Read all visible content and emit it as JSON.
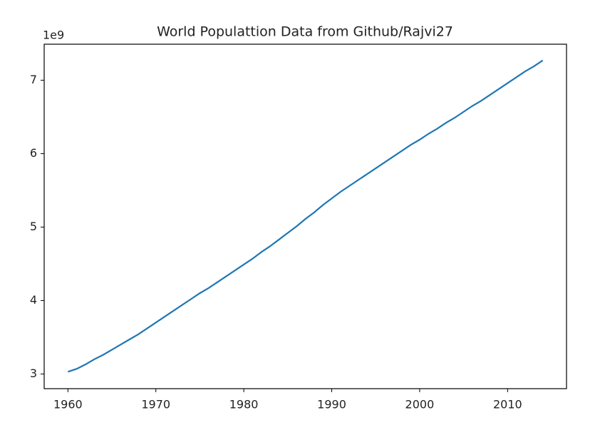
{
  "chart_data": {
    "type": "line",
    "title": "World Populattion Data from Github/Rajvi27",
    "y_offset_label": "1e9",
    "x": [
      1960,
      1961,
      1962,
      1963,
      1964,
      1965,
      1966,
      1967,
      1968,
      1969,
      1970,
      1971,
      1972,
      1973,
      1974,
      1975,
      1976,
      1977,
      1978,
      1979,
      1980,
      1981,
      1982,
      1983,
      1984,
      1985,
      1986,
      1987,
      1988,
      1989,
      1990,
      1991,
      1992,
      1993,
      1994,
      1995,
      1996,
      1997,
      1998,
      1999,
      2000,
      2001,
      2002,
      2003,
      2004,
      2005,
      2006,
      2007,
      2008,
      2009,
      2010,
      2011,
      2012,
      2013,
      2014
    ],
    "series": [
      {
        "color": "#1f77b4",
        "values": [
          3.03,
          3.07,
          3.13,
          3.2,
          3.26,
          3.33,
          3.4,
          3.47,
          3.54,
          3.62,
          3.7,
          3.78,
          3.86,
          3.94,
          4.02,
          4.1,
          4.17,
          4.25,
          4.33,
          4.41,
          4.49,
          4.57,
          4.66,
          4.74,
          4.83,
          4.92,
          5.01,
          5.11,
          5.2,
          5.3,
          5.39,
          5.48,
          5.56,
          5.64,
          5.72,
          5.8,
          5.88,
          5.96,
          6.04,
          6.12,
          6.19,
          6.27,
          6.34,
          6.42,
          6.49,
          6.57,
          6.65,
          6.72,
          6.8,
          6.88,
          6.96,
          7.04,
          7.12,
          7.19,
          7.27
        ]
      }
    ],
    "xlim": [
      1957.3,
      2016.7
    ],
    "xticks": [
      1960,
      1970,
      1980,
      1990,
      2000,
      2010
    ],
    "ylim": [
      2.8,
      7.49
    ],
    "yticks": [
      3,
      4,
      5,
      6,
      7
    ]
  }
}
